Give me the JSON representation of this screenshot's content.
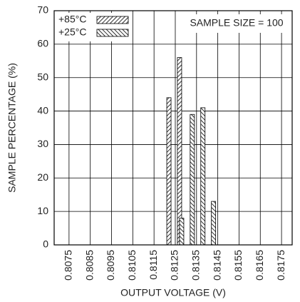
{
  "chart_data": {
    "type": "bar",
    "x_label": "OUTPUT VOLTAGE (V)",
    "y_label": "SAMPLE PERCENTAGE (%)",
    "annotation": "SAMPLE SIZE = 100",
    "xlim": [
      0.8068,
      0.818
    ],
    "xticks": [
      0.8075,
      0.8085,
      0.8095,
      0.8105,
      0.8115,
      0.8125,
      0.8135,
      0.8145,
      0.8155,
      0.8165,
      0.8175
    ],
    "ylim": [
      0,
      70
    ],
    "yticks": [
      0,
      10,
      20,
      30,
      40,
      50,
      60,
      70
    ],
    "grid": true,
    "legend": "upper-left",
    "series": [
      {
        "name": "+85°C",
        "color": "#000000",
        "hatch": "/",
        "x": [
          0.8122,
          0.8127
        ],
        "values": [
          44,
          56
        ]
      },
      {
        "name": "+25°C",
        "color": "#000000",
        "hatch": "\\",
        "x": [
          0.8128,
          0.8133,
          0.8138,
          0.8143
        ],
        "values": [
          8,
          39,
          41,
          13
        ]
      }
    ]
  }
}
